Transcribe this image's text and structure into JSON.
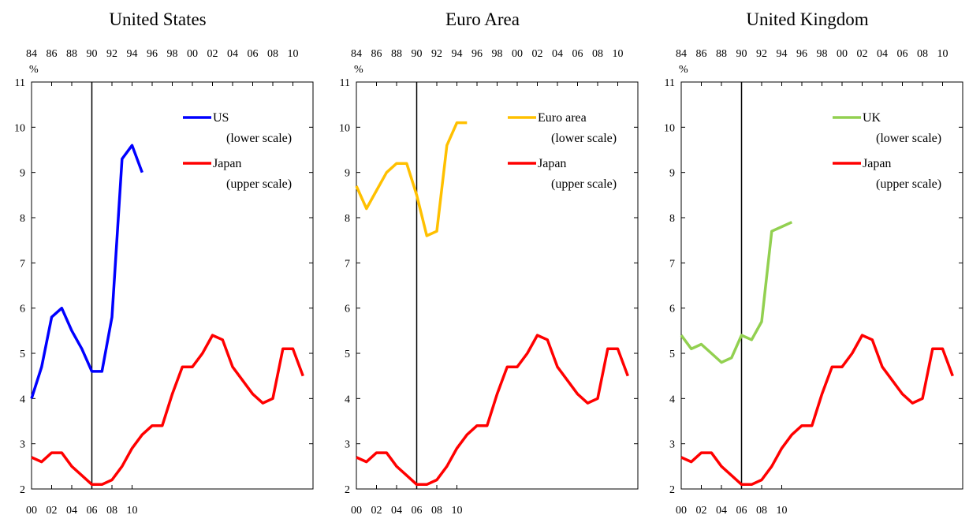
{
  "chart_data": [
    {
      "type": "line",
      "title": "United States",
      "y_unit_label": "%",
      "ylim": [
        2,
        11
      ],
      "y_ticks": [
        "2",
        "3",
        "4",
        "5",
        "6",
        "7",
        "8",
        "9",
        "10",
        "11"
      ],
      "upper_x_ticks": [
        "84",
        "86",
        "88",
        "90",
        "92",
        "94",
        "96",
        "98",
        "00",
        "02",
        "04",
        "06",
        "08",
        "10"
      ],
      "lower_x_ticks": [
        "00",
        "02",
        "04",
        "06",
        "08",
        "10"
      ],
      "series": [
        {
          "name": "US",
          "label_line2": "(lower scale)",
          "color": "#0000FF",
          "scale": "lower",
          "x": [
            2000,
            2001,
            2002,
            2003,
            2004,
            2005,
            2006,
            2007,
            2008,
            2009,
            2010,
            2011
          ],
          "values": [
            4.0,
            4.7,
            5.8,
            6.0,
            5.5,
            5.1,
            4.6,
            4.6,
            5.8,
            9.3,
            9.6,
            9.0
          ]
        },
        {
          "name": "Japan",
          "label_line2": "(upper scale)",
          "color": "#FF0000",
          "scale": "upper",
          "x": [
            1984,
            1985,
            1986,
            1987,
            1988,
            1989,
            1990,
            1991,
            1992,
            1993,
            1994,
            1995,
            1996,
            1997,
            1998,
            1999,
            2000,
            2001,
            2002,
            2003,
            2004,
            2005,
            2006,
            2007,
            2008,
            2009,
            2010,
            2011
          ],
          "values": [
            2.7,
            2.6,
            2.8,
            2.8,
            2.5,
            2.3,
            2.1,
            2.1,
            2.2,
            2.5,
            2.9,
            3.2,
            3.4,
            3.4,
            4.1,
            4.7,
            4.7,
            5.0,
            5.4,
            5.3,
            4.7,
            4.4,
            4.1,
            3.9,
            4.0,
            5.1,
            5.1,
            4.5
          ]
        }
      ]
    },
    {
      "type": "line",
      "title": "Euro Area",
      "y_unit_label": "%",
      "ylim": [
        2,
        11
      ],
      "y_ticks": [
        "2",
        "3",
        "4",
        "5",
        "6",
        "7",
        "8",
        "9",
        "10",
        "11"
      ],
      "upper_x_ticks": [
        "84",
        "86",
        "88",
        "90",
        "92",
        "94",
        "96",
        "98",
        "00",
        "02",
        "04",
        "06",
        "08",
        "10"
      ],
      "lower_x_ticks": [
        "00",
        "02",
        "04",
        "06",
        "08",
        "10"
      ],
      "series": [
        {
          "name": "Euro area",
          "label_line2": "(lower scale)",
          "color": "#FFC000",
          "scale": "lower",
          "x": [
            2000,
            2001,
            2002,
            2003,
            2004,
            2005,
            2006,
            2007,
            2008,
            2009,
            2010,
            2011
          ],
          "values": [
            8.7,
            8.2,
            8.6,
            9.0,
            9.2,
            9.2,
            8.5,
            7.6,
            7.7,
            9.6,
            10.1,
            10.1
          ]
        },
        {
          "name": "Japan",
          "label_line2": "(upper scale)",
          "color": "#FF0000",
          "scale": "upper",
          "x": [
            1984,
            1985,
            1986,
            1987,
            1988,
            1989,
            1990,
            1991,
            1992,
            1993,
            1994,
            1995,
            1996,
            1997,
            1998,
            1999,
            2000,
            2001,
            2002,
            2003,
            2004,
            2005,
            2006,
            2007,
            2008,
            2009,
            2010,
            2011
          ],
          "values": [
            2.7,
            2.6,
            2.8,
            2.8,
            2.5,
            2.3,
            2.1,
            2.1,
            2.2,
            2.5,
            2.9,
            3.2,
            3.4,
            3.4,
            4.1,
            4.7,
            4.7,
            5.0,
            5.4,
            5.3,
            4.7,
            4.4,
            4.1,
            3.9,
            4.0,
            5.1,
            5.1,
            4.5
          ]
        }
      ]
    },
    {
      "type": "line",
      "title": "United Kingdom",
      "y_unit_label": "%",
      "ylim": [
        2,
        11
      ],
      "y_ticks": [
        "2",
        "3",
        "4",
        "5",
        "6",
        "7",
        "8",
        "9",
        "10",
        "11"
      ],
      "upper_x_ticks": [
        "84",
        "86",
        "88",
        "90",
        "92",
        "94",
        "96",
        "98",
        "00",
        "02",
        "04",
        "06",
        "08",
        "10"
      ],
      "lower_x_ticks": [
        "00",
        "02",
        "04",
        "06",
        "08",
        "10"
      ],
      "series": [
        {
          "name": "UK",
          "label_line2": "(lower scale)",
          "color": "#92D050",
          "scale": "lower",
          "x": [
            2000,
            2001,
            2002,
            2003,
            2004,
            2005,
            2006,
            2007,
            2008,
            2009,
            2010,
            2011
          ],
          "values": [
            5.4,
            5.1,
            5.2,
            5.0,
            4.8,
            4.9,
            5.4,
            5.3,
            5.7,
            7.7,
            7.8,
            7.9
          ]
        },
        {
          "name": "Japan",
          "label_line2": "(upper scale)",
          "color": "#FF0000",
          "scale": "upper",
          "x": [
            1984,
            1985,
            1986,
            1987,
            1988,
            1989,
            1990,
            1991,
            1992,
            1993,
            1994,
            1995,
            1996,
            1997,
            1998,
            1999,
            2000,
            2001,
            2002,
            2003,
            2004,
            2005,
            2006,
            2007,
            2008,
            2009,
            2010,
            2011
          ],
          "values": [
            2.7,
            2.6,
            2.8,
            2.8,
            2.5,
            2.3,
            2.1,
            2.1,
            2.2,
            2.5,
            2.9,
            3.2,
            3.4,
            3.4,
            4.1,
            4.7,
            4.7,
            5.0,
            5.4,
            5.3,
            4.7,
            4.4,
            4.1,
            3.9,
            4.0,
            5.1,
            5.1,
            4.5
          ]
        }
      ]
    }
  ]
}
